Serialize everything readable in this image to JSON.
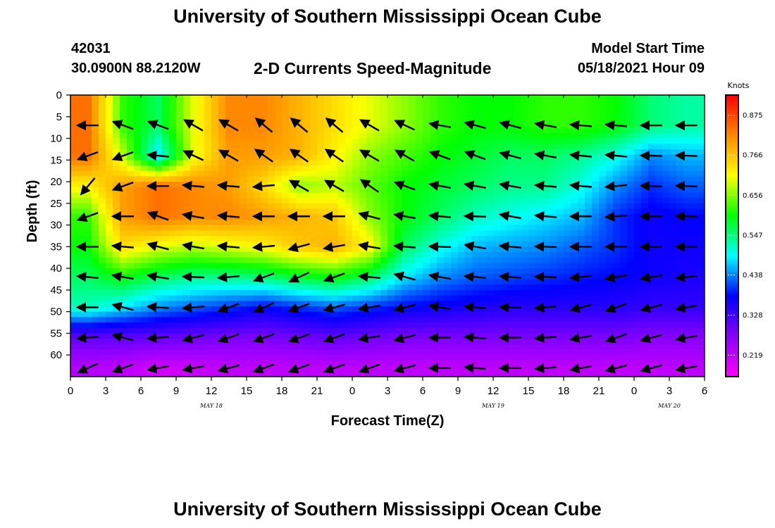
{
  "header": {
    "title": "University of Southern Mississippi Ocean Cube",
    "station_id": "42031",
    "station_coords": "30.0900N  88.2120W",
    "plot_title": "2-D Currents Speed-Magnitude",
    "model_start_label": "Model Start Time",
    "model_start_value": "05/18/2021 Hour 09"
  },
  "footer": {
    "title": "University of Southern Mississippi Ocean Cube"
  },
  "chart_data": {
    "type": "heatmap",
    "xlabel": "Forecast Time(Z)",
    "ylabel": "Depth (ft)",
    "colorbar_label": "Knots",
    "colorbar_ticks": [
      0.875,
      0.766,
      0.656,
      0.547,
      0.438,
      0.328,
      0.219
    ],
    "colorbar_range": [
      0.16,
      0.93
    ],
    "colors": [
      "#ff00ff",
      "#8800ff",
      "#0000ff",
      "#00ffff",
      "#00ff00",
      "#ffff00",
      "#ff8800",
      "#ff0000"
    ],
    "y_range": [
      0,
      65
    ],
    "y_ticks": [
      0,
      5,
      10,
      15,
      20,
      25,
      30,
      35,
      40,
      45,
      50,
      55,
      60
    ],
    "x_range_hours": [
      0,
      54
    ],
    "x_tick_labels": [
      "0",
      "3",
      "6",
      "9",
      "12",
      "15",
      "18",
      "21",
      "0",
      "3",
      "6",
      "9",
      "12",
      "15",
      "18",
      "21",
      "0",
      "3",
      "6"
    ],
    "date_labels": [
      {
        "label": "MAY 18",
        "hour": 12
      },
      {
        "label": "MAY 19",
        "hour": 36
      },
      {
        "label": "MAY 20",
        "hour": 51
      }
    ],
    "time_hours": [
      1.5,
      4.5,
      7.5,
      10.5,
      13.5,
      16.5,
      19.5,
      22.5,
      25.5,
      28.5,
      31.5,
      34.5,
      37.5,
      40.5,
      43.5,
      46.5,
      49.5,
      52.5
    ],
    "depths_ft": [
      7,
      14,
      21,
      28,
      35,
      42,
      49,
      56,
      63
    ],
    "speed_knots": [
      [
        0.84,
        0.62,
        0.56,
        0.7,
        0.82,
        0.82,
        0.78,
        0.74,
        0.7,
        0.66,
        0.62,
        0.6,
        0.6,
        0.62,
        0.62,
        0.6,
        0.55,
        0.53
      ],
      [
        0.84,
        0.68,
        0.48,
        0.7,
        0.8,
        0.8,
        0.78,
        0.72,
        0.66,
        0.63,
        0.6,
        0.58,
        0.56,
        0.56,
        0.54,
        0.5,
        0.44,
        0.46
      ],
      [
        0.72,
        0.8,
        0.84,
        0.82,
        0.8,
        0.74,
        0.66,
        0.68,
        0.64,
        0.6,
        0.58,
        0.56,
        0.54,
        0.54,
        0.5,
        0.44,
        0.4,
        0.42
      ],
      [
        0.62,
        0.8,
        0.84,
        0.82,
        0.82,
        0.8,
        0.78,
        0.76,
        0.66,
        0.6,
        0.56,
        0.52,
        0.5,
        0.48,
        0.46,
        0.4,
        0.37,
        0.38
      ],
      [
        0.6,
        0.74,
        0.7,
        0.68,
        0.7,
        0.72,
        0.76,
        0.78,
        0.72,
        0.56,
        0.5,
        0.46,
        0.45,
        0.44,
        0.42,
        0.4,
        0.37,
        0.37
      ],
      [
        0.56,
        0.6,
        0.56,
        0.54,
        0.54,
        0.55,
        0.58,
        0.6,
        0.56,
        0.48,
        0.44,
        0.42,
        0.41,
        0.4,
        0.39,
        0.38,
        0.37,
        0.36
      ],
      [
        0.52,
        0.48,
        0.44,
        0.42,
        0.4,
        0.38,
        0.4,
        0.42,
        0.4,
        0.38,
        0.37,
        0.36,
        0.35,
        0.35,
        0.35,
        0.35,
        0.34,
        0.34
      ],
      [
        0.3,
        0.3,
        0.3,
        0.29,
        0.28,
        0.28,
        0.29,
        0.3,
        0.29,
        0.28,
        0.28,
        0.28,
        0.28,
        0.28,
        0.28,
        0.28,
        0.27,
        0.27
      ],
      [
        0.23,
        0.22,
        0.2,
        0.21,
        0.22,
        0.22,
        0.22,
        0.22,
        0.22,
        0.22,
        0.22,
        0.22,
        0.22,
        0.22,
        0.22,
        0.22,
        0.22,
        0.22
      ]
    ],
    "vector_rows": [
      {
        "depth": 7,
        "dirs": [
          180,
          160,
          160,
          150,
          150,
          140,
          140,
          140,
          150,
          155,
          170,
          165,
          165,
          170,
          175,
          175,
          180,
          180
        ]
      },
      {
        "depth": 14,
        "dirs": [
          200,
          200,
          175,
          155,
          150,
          145,
          145,
          145,
          150,
          150,
          160,
          160,
          165,
          170,
          175,
          175,
          178,
          178
        ]
      },
      {
        "depth": 21,
        "dirs": [
          230,
          200,
          180,
          175,
          175,
          185,
          150,
          150,
          145,
          160,
          170,
          170,
          170,
          175,
          175,
          185,
          178,
          178
        ]
      },
      {
        "depth": 28,
        "dirs": [
          200,
          180,
          160,
          170,
          175,
          180,
          180,
          180,
          165,
          170,
          175,
          178,
          170,
          175,
          180,
          185,
          180,
          178
        ]
      },
      {
        "depth": 35,
        "dirs": [
          180,
          175,
          165,
          170,
          175,
          185,
          195,
          190,
          170,
          175,
          178,
          170,
          175,
          178,
          180,
          180,
          180,
          180
        ]
      },
      {
        "depth": 42,
        "dirs": [
          175,
          170,
          170,
          178,
          185,
          200,
          205,
          200,
          175,
          165,
          170,
          175,
          175,
          178,
          185,
          190,
          190,
          185
        ]
      },
      {
        "depth": 49,
        "dirs": [
          180,
          165,
          175,
          185,
          200,
          205,
          200,
          195,
          190,
          195,
          170,
          175,
          178,
          185,
          195,
          200,
          195,
          190
        ]
      },
      {
        "depth": 56,
        "dirs": [
          185,
          165,
          185,
          195,
          200,
          200,
          200,
          200,
          190,
          195,
          180,
          175,
          180,
          185,
          190,
          200,
          195,
          190
        ]
      },
      {
        "depth": 63,
        "dirs": [
          205,
          200,
          190,
          190,
          195,
          200,
          200,
          200,
          200,
          195,
          180,
          175,
          180,
          185,
          190,
          195,
          195,
          190
        ]
      }
    ]
  }
}
